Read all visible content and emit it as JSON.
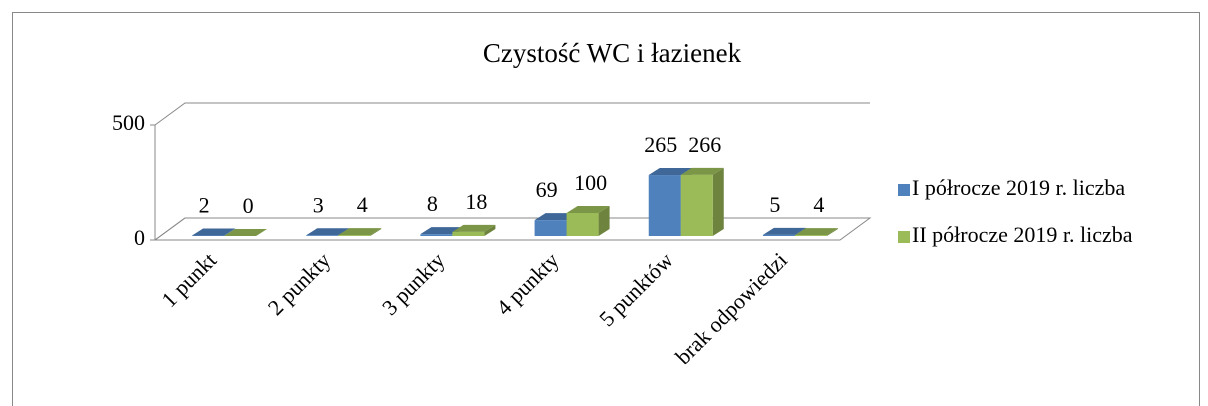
{
  "chart_data": {
    "type": "bar3d",
    "title": "Czystość WC i łazienek",
    "categories": [
      "1 punkt",
      "2 punkty",
      "3 punkty",
      "4 punkty",
      "5 punktów",
      "brak odpowiedzi"
    ],
    "series": [
      {
        "name": "I półrocze 2019 r. liczba",
        "color": "#4f81bd",
        "values": [
          2,
          3,
          8,
          69,
          265,
          5
        ]
      },
      {
        "name": "II półrocze 2019 r. liczba",
        "color": "#9bbb59",
        "values": [
          0,
          4,
          18,
          100,
          266,
          4
        ]
      }
    ],
    "ylim": [
      0,
      500
    ],
    "yticks": [
      0,
      500
    ],
    "grid": true,
    "legend": "right"
  }
}
